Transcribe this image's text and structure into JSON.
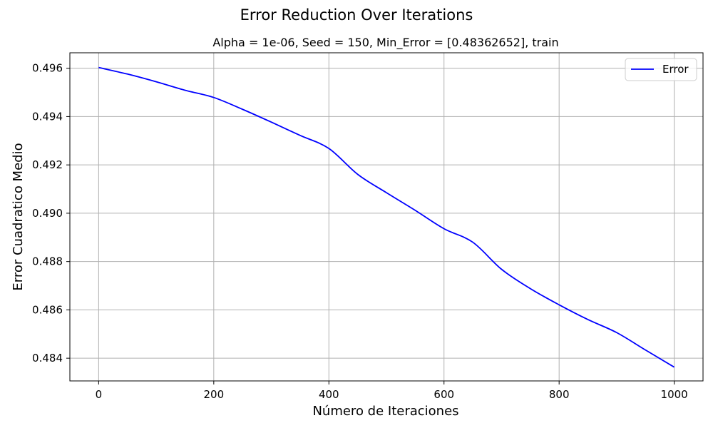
{
  "chart_data": {
    "type": "line",
    "suptitle": "Error Reduction Over Iterations",
    "title": "Alpha = 1e-06, Seed = 150, Min_Error = [0.48362652], train",
    "xlabel": "Número de Iteraciones",
    "ylabel": "Error Cuadratico Medio",
    "xlim": [
      -50,
      1050
    ],
    "ylim": [
      0.48306,
      0.49664
    ],
    "xticks": [
      0,
      200,
      400,
      600,
      800,
      1000
    ],
    "xtick_labels": [
      "0",
      "200",
      "400",
      "600",
      "800",
      "1000"
    ],
    "yticks": [
      0.484,
      0.486,
      0.488,
      0.49,
      0.492,
      0.494,
      0.496
    ],
    "ytick_labels": [
      "0.484",
      "0.486",
      "0.488",
      "0.490",
      "0.492",
      "0.494",
      "0.496"
    ],
    "grid": true,
    "legend": {
      "position": "upper-right",
      "entries": [
        "Error"
      ]
    },
    "series": [
      {
        "name": "Error",
        "color": "#0000ff",
        "x": [
          0,
          50,
          100,
          150,
          200,
          250,
          300,
          350,
          400,
          450,
          500,
          550,
          600,
          650,
          700,
          750,
          800,
          850,
          900,
          950,
          1000
        ],
        "y": [
          0.49603,
          0.49576,
          0.49544,
          0.49509,
          0.49479,
          0.4943,
          0.49377,
          0.49322,
          0.49268,
          0.49161,
          0.49085,
          0.49012,
          0.48936,
          0.4888,
          0.48768,
          0.48688,
          0.48621,
          0.4856,
          0.48506,
          0.48434,
          0.48363
        ]
      }
    ]
  }
}
